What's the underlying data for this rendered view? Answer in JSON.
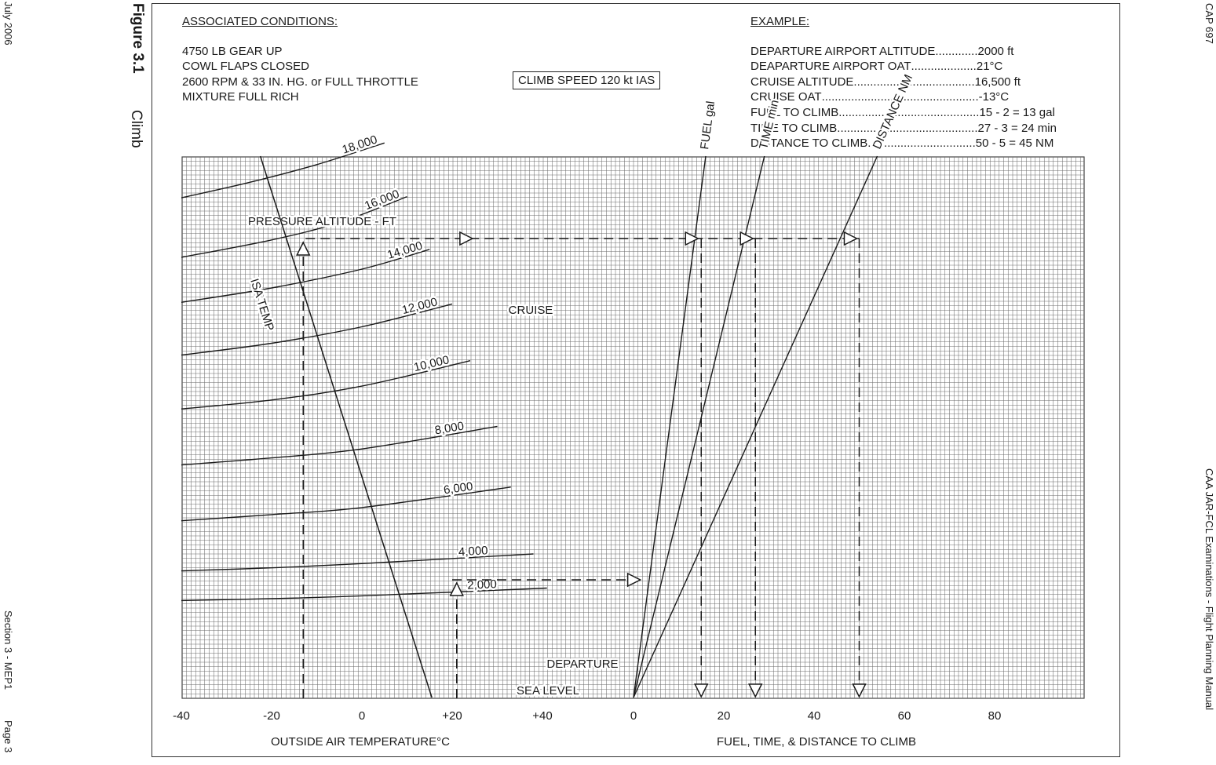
{
  "page": {
    "left_margin": {
      "date": "July 2006",
      "section": "Section 3 - MEP1",
      "page": "Page 3"
    },
    "right_margin": {
      "doc": "CAP 697",
      "manual": "CAA JAR-FCL Examinations - Flight Planning Manual"
    },
    "figure_label": "Figure 3.1",
    "figure_title": "Climb"
  },
  "conditions": {
    "heading": "ASSOCIATED CONDITIONS:",
    "lines": [
      "4750 LB GEAR UP",
      "COWL FLAPS CLOSED",
      "2600 RPM & 33 IN. HG. or FULL THROTTLE",
      "MIXTURE FULL RICH"
    ],
    "climb_speed": "CLIMB SPEED 120 kt IAS"
  },
  "example": {
    "heading": "EXAMPLE:",
    "rows": [
      {
        "label": "DEPARTURE AIRPORT ALTITUDE",
        "dots": ".............",
        "value": "2000 ft"
      },
      {
        "label": "DEAPARTURE AIRPORT OAT",
        "dots": "....................",
        "value": "21°C"
      },
      {
        "label": "CRUISE ALTITUDE",
        "dots": ".....................................",
        "value": "16,500 ft"
      },
      {
        "label": "CRUISE OAT",
        "dots": "................................................",
        "value": "-13°C"
      },
      {
        "label": "FUEL TO CLIMB",
        "dots": "...........................................",
        "value": "15 - 2 = 13 gal"
      },
      {
        "label": "TIME TO CLIMB",
        "dots": "...........................................",
        "value": "27 - 3 = 24 min"
      },
      {
        "label": "DISTANCE TO CLIMB",
        "dots": ".................................",
        "value": "50 - 5 = 45 NM"
      }
    ]
  },
  "chart_data": {
    "type": "line",
    "panels": [
      {
        "name": "temperature_panel",
        "xlabel": "OUTSIDE AIR TEMPERATURE°C",
        "x_ticks": [
          "-40",
          "-20",
          "0",
          "+20",
          "+40"
        ],
        "xlim": [
          -40,
          60
        ],
        "title_label": "PRESSURE ALTITUDE - FT",
        "altitude_lines": [
          {
            "label": "18,000",
            "points": [
              [
                -40,
                18230
              ],
              [
                -25,
                18880
              ],
              [
                -10,
                19640
              ],
              [
                5,
                20560
              ]
            ]
          },
          {
            "label": "16,000",
            "points": [
              [
                -40,
                15700
              ],
              [
                -20,
                16440
              ],
              [
                -5,
                17180
              ],
              [
                10,
                18280
              ]
            ]
          },
          {
            "label": "14,000",
            "points": [
              [
                -40,
                13790
              ],
              [
                -20,
                14400
              ],
              [
                0,
                15200
              ],
              [
                15,
                16040
              ]
            ]
          },
          {
            "label": "12,000",
            "points": [
              [
                -40,
                11550
              ],
              [
                -20,
                12050
              ],
              [
                0,
                12750
              ],
              [
                20,
                13720
              ]
            ]
          },
          {
            "label": "10,000",
            "points": [
              [
                -40,
                9260
              ],
              [
                -20,
                9640
              ],
              [
                0,
                10230
              ],
              [
                24,
                11310
              ]
            ]
          },
          {
            "label": "8,000",
            "points": [
              [
                -40,
                6880
              ],
              [
                -20,
                7180
              ],
              [
                0,
                7560
              ],
              [
                30,
                8520
              ]
            ]
          },
          {
            "label": "6,000",
            "points": [
              [
                -40,
                4510
              ],
              [
                -20,
                4770
              ],
              [
                0,
                5070
              ],
              [
                33,
                5940
              ]
            ]
          },
          {
            "label": "4,000",
            "points": [
              [
                -40,
                2380
              ],
              [
                -20,
                2510
              ],
              [
                0,
                2690
              ],
              [
                38,
                3100
              ]
            ]
          },
          {
            "label": "2,000",
            "points": [
              [
                -40,
                1120
              ],
              [
                -20,
                1200
              ],
              [
                0,
                1320
              ],
              [
                41,
                1650
              ]
            ]
          }
        ],
        "isa_temp_line": {
          "label": "ISA TEMP",
          "points": [
            [
              -22.5,
              20000
            ],
            [
              15.5,
              -3000
            ]
          ]
        },
        "cruise_label": "CRUISE",
        "departure_label": "DEPARTURE",
        "sea_level_label": "SEA LEVEL"
      },
      {
        "name": "fuel_time_distance_panel",
        "xlabel": "FUEL, TIME, & DISTANCE TO CLIMB",
        "x_ticks": [
          "0",
          "20",
          "40",
          "60",
          "80"
        ],
        "xlim": [
          0,
          100
        ],
        "series": [
          {
            "name": "FUEL gal",
            "points": [
              [
                0,
                -3000
              ],
              [
                16,
                20000
              ]
            ]
          },
          {
            "name": "TIME min",
            "points": [
              [
                0,
                -3000
              ],
              [
                29,
                20000
              ]
            ]
          },
          {
            "name": "DISTANCE NM",
            "points": [
              [
                0,
                -3000
              ],
              [
                54,
                20000
              ]
            ]
          }
        ]
      }
    ],
    "example_path": {
      "departure_oat": 21,
      "departure_altitude_ft": 2000,
      "cruise_oat": -13,
      "cruise_altitude_ft": 16500,
      "fuel_start": 2,
      "fuel_end": 15,
      "time_start": 3,
      "time_end": 27,
      "distance_start": 5,
      "distance_end": 50
    },
    "grid": true,
    "ylim_ft": [
      -3000,
      20000
    ]
  }
}
